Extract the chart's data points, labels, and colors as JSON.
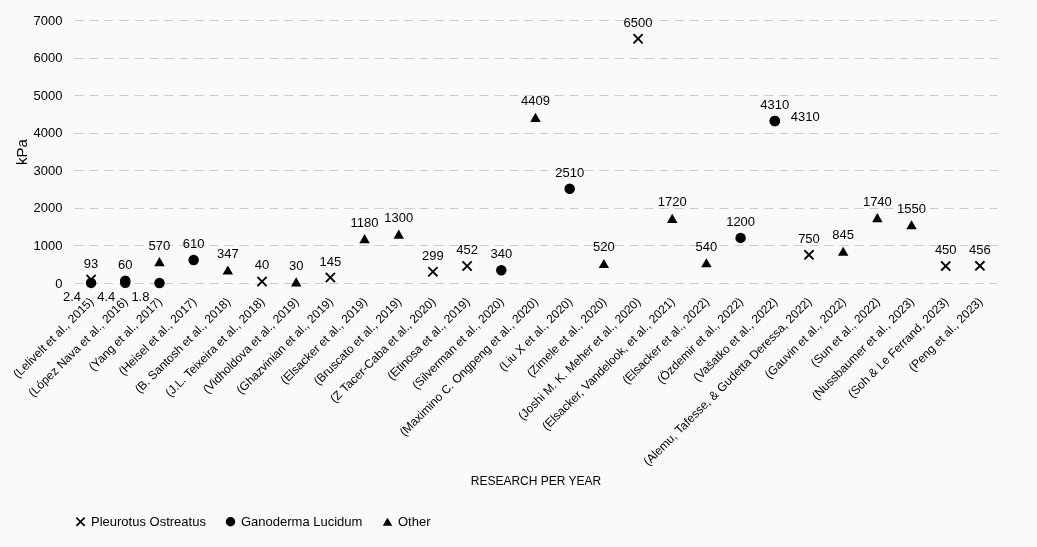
{
  "chart_data": {
    "type": "scatter",
    "xlabel": "RESEARCH PER YEAR",
    "ylabel": "kPa",
    "categories": [
      "(Lelivelt et al., 2015)",
      "(López Nava et al., 2016)",
      "(Yang et al., 2017)",
      "(Heisel et al., 2017)",
      "(B. Santosh et al., 2018)",
      "(J.L. Teixeira et al., 2018)",
      "(Vidholdova et al., 2019)",
      "(Ghazvinian et al., 2019)",
      "(Elsacker et al., 2019)",
      "(Bruscato et al., 2019)",
      "(Z Tacer-Caba et al., 2020)",
      "(Etinosa et al., 2019)",
      "(Silverman et al., 2020)",
      "(Maximino C. Ongpeng et al., 2020)",
      "(Liu X et al., 2020)",
      "(Zimele et al., 2020)",
      "(Joshi M. K. Meher et al., 2020)",
      "(Elsacker, Vandelook, et al., 2021)",
      "(Elsacker et al., 2022)",
      "(Özdemir et al., 2022)",
      "(Vašatko et al., 2022)",
      "(Alemu, Tafesse, & Gudetta Deressa, 2022)",
      "(Gauvin et al., 2022)",
      "(Sun et al., 2022)",
      "(Nussbaumer et al., 2023)",
      "(Soh & Le Ferrand, 2023)",
      "(Peng et al., 2023)"
    ],
    "series": [
      {
        "name": "Pleurotus Ostreatus",
        "color": "#000000",
        "marker": "cross",
        "x": [
          "(Lelivelt et al., 2015)",
          "(J.L. Teixeira et al., 2018)",
          "(Ghazvinian et al., 2019)",
          "(Z Tacer-Caba et al., 2020)",
          "(Etinosa et al., 2019)",
          "(Joshi M. K. Meher et al., 2020)",
          "(Alemu, Tafesse, & Gudetta Deressa, 2022)",
          "(Soh & Le Ferrand, 2023)",
          "(Peng et al., 2023)"
        ],
        "values": [
          93,
          40,
          145,
          299,
          452,
          6500,
          750,
          450,
          456
        ]
      },
      {
        "name": "Ganoderma Lucidum",
        "color": "#000000",
        "marker": "circle",
        "x": [
          "(Lelivelt et al., 2015)",
          "(López Nava et al., 2016)",
          "(López Nava et al., 2016)",
          "(Yang et al., 2017)",
          "(Heisel et al., 2017)",
          "(Silverman et al., 2020)",
          "(Liu X et al., 2020)",
          "(Özdemir et al., 2022)",
          "(Vašatko et al., 2022)",
          "(Vašatko et al., 2022)"
        ],
        "values": [
          2.4,
          60,
          4.4,
          1.8,
          610,
          340,
          2510,
          1200,
          4310,
          4310
        ]
      },
      {
        "name": "Other",
        "color": "#000000",
        "marker": "triangle",
        "x": [
          "(Yang et al., 2017)",
          "(B. Santosh et al., 2018)",
          "(Vidholdova et al., 2019)",
          "(Elsacker et al., 2019)",
          "(Bruscato et al., 2019)",
          "(Maximino C. Ongpeng et al., 2020)",
          "(Zimele et al., 2020)",
          "(Elsacker, Vandelook, et al., 2021)",
          "(Elsacker et al., 2022)",
          "(Gauvin et al., 2022)",
          "(Sun et al., 2022)",
          "(Nussbaumer et al., 2023)"
        ],
        "values": [
          570,
          347,
          30,
          1180,
          1300,
          4409,
          520,
          1720,
          540,
          845,
          1740,
          1550
        ]
      }
    ],
    "ylim": [
      0,
      7000
    ],
    "yticks": [
      0,
      1000,
      2000,
      3000,
      4000,
      5000,
      6000,
      7000
    ],
    "grid": "y",
    "legend": "bottom",
    "data_labels": true
  }
}
